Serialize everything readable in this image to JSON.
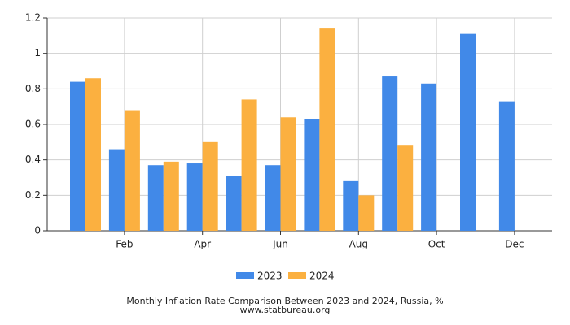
{
  "chart_data": {
    "type": "bar",
    "title": "Monthly Inflation Rate Comparison Between 2023 and 2024, Russia, %",
    "subtitle": "www.statbureau.org",
    "categories": [
      null,
      "Feb",
      null,
      "Apr",
      null,
      "Jun",
      null,
      "Aug",
      null,
      "Oct",
      null,
      "Dec"
    ],
    "series": [
      {
        "name": "2023",
        "color": "#4189e8",
        "values": [
          0.84,
          0.46,
          0.37,
          0.38,
          0.31,
          0.37,
          0.63,
          0.28,
          0.87,
          0.83,
          1.11,
          0.73
        ]
      },
      {
        "name": "2024",
        "color": "#fbb040",
        "values": [
          0.86,
          0.68,
          0.39,
          0.5,
          0.74,
          0.64,
          1.14,
          0.2,
          0.48,
          null,
          null,
          null
        ]
      }
    ],
    "ylim": [
      0,
      1.2
    ],
    "yticks": [
      0,
      0.2,
      0.4,
      0.6,
      0.8,
      1,
      1.2
    ],
    "grid": true,
    "legend": "bottom"
  }
}
